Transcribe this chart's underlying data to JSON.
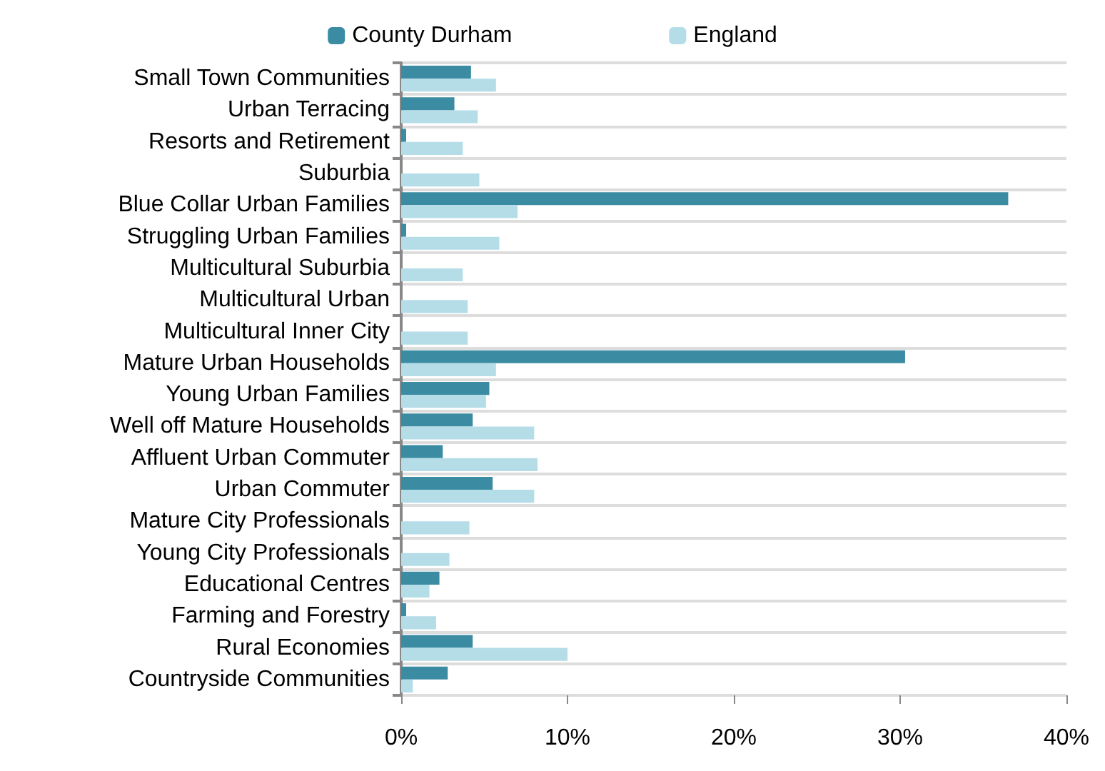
{
  "chart_data": {
    "type": "bar",
    "orientation": "horizontal",
    "categories": [
      "Small Town Communities",
      "Urban Terracing",
      "Resorts and Retirement",
      "Suburbia",
      "Blue Collar Urban Families",
      "Struggling Urban Families",
      "Multicultural Suburbia",
      "Multicultural Urban",
      "Multicultural Inner City",
      "Mature Urban Households",
      "Young Urban Families",
      "Well off Mature Households",
      "Affluent Urban Commuter",
      "Urban Commuter",
      "Mature City Professionals",
      "Young City Professionals",
      "Educational Centres",
      "Farming and Forestry",
      "Rural Economies",
      "Countryside Communities"
    ],
    "series": [
      {
        "name": "County Durham",
        "color": "#3b8ca3",
        "values": [
          4.2,
          3.2,
          0.3,
          0,
          36.5,
          0.3,
          0,
          0,
          0,
          30.3,
          5.3,
          4.3,
          2.5,
          5.5,
          0,
          0,
          2.3,
          0.3,
          4.3,
          2.8
        ]
      },
      {
        "name": "England",
        "color": "#b4dde8",
        "values": [
          5.7,
          4.6,
          3.7,
          4.7,
          7.0,
          5.9,
          3.7,
          4.0,
          4.0,
          5.7,
          5.1,
          8.0,
          8.2,
          8.0,
          4.1,
          2.9,
          1.7,
          2.1,
          10.0,
          0.7
        ]
      }
    ],
    "xlim": [
      0,
      40
    ],
    "xticks": [
      {
        "value": 0,
        "label": "0%"
      },
      {
        "value": 10,
        "label": "10%"
      },
      {
        "value": 20,
        "label": "20%"
      },
      {
        "value": 30,
        "label": "30%"
      },
      {
        "value": 40,
        "label": "40%"
      }
    ],
    "grid": "y",
    "legend": "top"
  }
}
